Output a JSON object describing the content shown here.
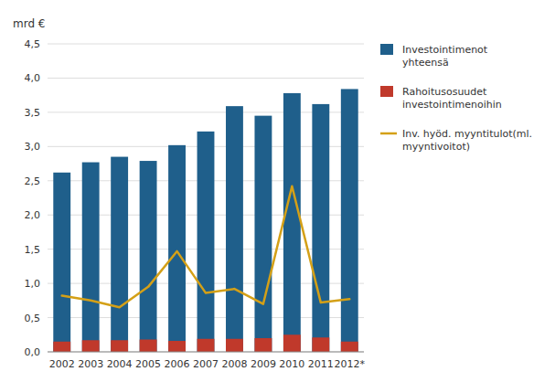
{
  "chart_data": {
    "type": "bar",
    "y_label": "mrd €",
    "categories": [
      "2002",
      "2003",
      "2004",
      "2005",
      "2006",
      "2007",
      "2008",
      "2009",
      "2010",
      "2011",
      "2012*"
    ],
    "series": [
      {
        "name": "Investointimenot\nyhteensä",
        "type": "bar",
        "color": "#1F5F8B",
        "values": [
          2.62,
          2.77,
          2.85,
          2.79,
          3.02,
          3.22,
          3.59,
          3.45,
          3.78,
          3.62,
          3.84
        ]
      },
      {
        "name": "Rahoitusosuudet\ninvestointimenoihin",
        "type": "bar",
        "color": "#C0392B",
        "values": [
          0.15,
          0.17,
          0.17,
          0.18,
          0.16,
          0.19,
          0.19,
          0.2,
          0.25,
          0.21,
          0.15
        ]
      },
      {
        "name": "Inv. hyöd. myyntitulot(ml.\nmyyntivoitot)",
        "type": "line",
        "color": "#D4A017",
        "values": [
          0.82,
          0.75,
          0.65,
          0.95,
          1.47,
          0.86,
          0.92,
          0.7,
          2.42,
          0.72,
          0.77
        ]
      }
    ],
    "ylim": [
      0,
      4.5
    ],
    "yticks": [
      {
        "value": 0.0,
        "label": "0,0"
      },
      {
        "value": 0.5,
        "label": "0,5"
      },
      {
        "value": 1.0,
        "label": "1,0"
      },
      {
        "value": 1.5,
        "label": "1,5"
      },
      {
        "value": 2.0,
        "label": "2,0"
      },
      {
        "value": 2.5,
        "label": "2,5"
      },
      {
        "value": 3.0,
        "label": "3,0"
      },
      {
        "value": 3.5,
        "label": "3,5"
      },
      {
        "value": 4.0,
        "label": "4,0"
      },
      {
        "value": 4.5,
        "label": "4,5"
      }
    ],
    "grid": true,
    "legend": "right"
  }
}
